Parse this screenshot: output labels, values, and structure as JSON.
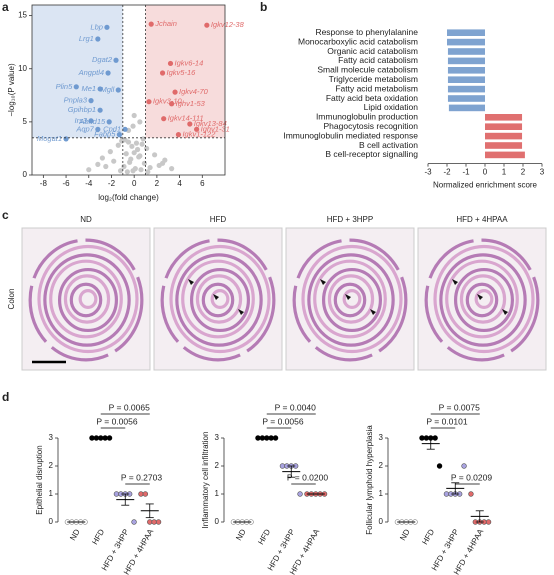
{
  "panel_letters": [
    "a",
    "b",
    "c",
    "d"
  ],
  "histology": {
    "groups": [
      "ND",
      "HFD",
      "HFD + 3HPP",
      "HFD + 4HPAA"
    ],
    "tissue": "Colon"
  },
  "chart_data": [
    {
      "type": "volcano",
      "xlabel": "log₂(fold change)",
      "ylabel": "−log₁₀(P value)",
      "xlim": [
        -9,
        8
      ],
      "ylim": [
        0,
        16
      ],
      "xticks": [
        -8,
        -6,
        -4,
        -2,
        0,
        2,
        4,
        6
      ],
      "yticks": [
        0,
        5,
        10,
        15
      ],
      "thresholds": {
        "x": [
          -1,
          1
        ],
        "y": 3.5
      },
      "shade_colors": [
        "#dbe5f3",
        "#f7dcdc"
      ],
      "background": {
        "color": "#c8c8c8",
        "x": [
          -4,
          -3.2,
          -2.8,
          -2.1,
          -1.8,
          -1.4,
          -1.1,
          -0.9,
          -0.7,
          -0.5,
          -0.3,
          -0.1,
          0.1,
          0.3,
          0.5,
          0.7,
          0.9,
          1.1,
          1.4,
          1.8,
          2.2,
          2.7,
          3.3,
          -0.6,
          -0.2,
          0.2,
          0.6,
          -0.4,
          0.4,
          0,
          -1.2,
          1.2,
          -0.8,
          0.8,
          -2.5,
          2.5,
          -0.5,
          0.5,
          0,
          -0.1
        ],
        "y": [
          0.5,
          1.0,
          1.6,
          2.2,
          1.3,
          2.8,
          3.2,
          0.8,
          2.0,
          3.1,
          1.5,
          0.4,
          0.6,
          2.4,
          1.8,
          2.9,
          1.1,
          2.5,
          0.7,
          1.9,
          0.9,
          1.4,
          0.6,
          0.3,
          2.7,
          3.0,
          0.5,
          1.2,
          1.7,
          2.1,
          0.4,
          0.3,
          3.3,
          3.4,
          0.8,
          1.1,
          4.2,
          5.0,
          5.6,
          4.6
        ]
      },
      "down": {
        "color": "#6f9ad0",
        "labels": [
          "Lbp",
          "Lrg1",
          "Dgat2",
          "Angptl4",
          "Plin5",
          "Me1",
          "Mgll",
          "Pnpla3",
          "Gpihbp1",
          "Irs3",
          "Abhd15",
          "Aqp7",
          "Cpd1",
          "Fabp5",
          "Mogat1"
        ],
        "x": [
          -2.4,
          -3.2,
          -1.6,
          -2.3,
          -5.1,
          -3.0,
          -1.4,
          -3.8,
          -3.0,
          -3.8,
          -2.2,
          -3.2,
          -0.8,
          -1.3,
          -6.0
        ],
        "y": [
          13.9,
          12.8,
          10.8,
          9.6,
          8.3,
          8.1,
          8.0,
          7.0,
          6.1,
          5.1,
          5.0,
          4.3,
          4.3,
          3.8,
          3.4
        ]
      },
      "up": {
        "color": "#e06a6a",
        "labels": [
          "Jchain",
          "Igkv12-38",
          "Igkv6-14",
          "Igkv5-16",
          "Igkv4-70",
          "Igkv3-10",
          "Ighv1-53",
          "Igkv14-111",
          "Igkv13-84",
          "Ighv1-31",
          "Igkv1-122"
        ],
        "x": [
          1.5,
          6.4,
          3.2,
          2.5,
          3.6,
          1.3,
          3.3,
          2.6,
          4.9,
          5.5,
          3.9
        ],
        "y": [
          14.2,
          14.1,
          10.5,
          9.6,
          7.8,
          6.9,
          6.7,
          5.3,
          4.8,
          4.3,
          3.8
        ]
      }
    },
    {
      "type": "hbar",
      "xlabel": "Normalized enrichment score",
      "xlim": [
        -3,
        3
      ],
      "xticks": [
        -3,
        -2,
        -1,
        0,
        1,
        2,
        3
      ],
      "colors": [
        "#7fa3d0",
        "#e07070"
      ],
      "categories": [
        "Response to phenylalanine",
        "Monocarboxylic acid catabolism",
        "Organic acid catabolism",
        "Fatty acid catabolism",
        "Small molecule catabolism",
        "Triglyceride metabolism",
        "Fatty acid metabolism",
        "Fatty acid beta oxidation",
        "Lipid oxidation",
        "Immunoglobulin production",
        "Phagocytosis recognition",
        "Immunoglobulin mediated response",
        "B cell activation",
        "B cell-receptor signalling"
      ],
      "values": [
        -2.0,
        -2.0,
        -1.95,
        -1.95,
        -1.95,
        -1.95,
        -1.95,
        -1.95,
        -1.9,
        1.95,
        1.95,
        1.95,
        1.95,
        2.1
      ]
    },
    {
      "type": "dot",
      "ylabel": "Epithelial disruption",
      "categories": [
        "ND",
        "HFD",
        "HFD + 3HPP",
        "HFD + 4HPAA"
      ],
      "colors": [
        "#ffffff",
        "#000000",
        "#a9a3e0",
        "#e06a6a"
      ],
      "ylim": [
        0,
        3
      ],
      "yticks": [
        0,
        1,
        2,
        3
      ],
      "values": [
        [
          0,
          0,
          0,
          0,
          0
        ],
        [
          3,
          3,
          3,
          3,
          3
        ],
        [
          1,
          1,
          1,
          1,
          0
        ],
        [
          1,
          1,
          0,
          0,
          0
        ]
      ],
      "means": [
        0,
        3,
        0.8,
        0.4
      ],
      "errors": [
        0,
        0,
        0.2,
        0.245
      ],
      "comparisons": [
        {
          "between": [
            1,
            3
          ],
          "label": "P = 0.0065"
        },
        {
          "between": [
            1,
            2
          ],
          "label": "P = 0.0056"
        },
        {
          "between": [
            2,
            3
          ],
          "label": "P = 0.2703"
        }
      ]
    },
    {
      "type": "dot",
      "ylabel": "Inflammatory cell infiltration",
      "categories": [
        "ND",
        "HFD",
        "HFD + 3HPP",
        "HFD + 4HPAA"
      ],
      "colors": [
        "#ffffff",
        "#000000",
        "#a9a3e0",
        "#e06a6a"
      ],
      "ylim": [
        0,
        3
      ],
      "yticks": [
        0,
        1,
        2,
        3
      ],
      "values": [
        [
          0,
          0,
          0,
          0,
          0
        ],
        [
          3,
          3,
          3,
          3,
          3
        ],
        [
          2,
          2,
          2,
          2,
          1
        ],
        [
          1,
          1,
          1,
          1,
          1
        ]
      ],
      "means": [
        0,
        3,
        1.8,
        1
      ],
      "errors": [
        0,
        0,
        0.2,
        0
      ],
      "comparisons": [
        {
          "between": [
            1,
            3
          ],
          "label": "P = 0.0040"
        },
        {
          "between": [
            1,
            2
          ],
          "label": "P = 0.0056"
        },
        {
          "between": [
            2,
            3
          ],
          "label": "P = 0.0200"
        }
      ]
    },
    {
      "type": "dot",
      "ylabel": "Follicular lymphoid hyperplasia",
      "categories": [
        "ND",
        "HFD",
        "HFD + 3HPP",
        "HFD + 4HPAA"
      ],
      "colors": [
        "#ffffff",
        "#000000",
        "#a9a3e0",
        "#e06a6a"
      ],
      "ylim": [
        0,
        3
      ],
      "yticks": [
        0,
        1,
        2,
        3
      ],
      "values": [
        [
          0,
          0,
          0,
          0,
          0
        ],
        [
          3,
          3,
          3,
          3,
          2
        ],
        [
          1,
          1,
          1,
          1,
          2
        ],
        [
          1,
          0,
          0,
          0,
          0
        ]
      ],
      "means": [
        0,
        2.8,
        1.2,
        0.2
      ],
      "errors": [
        0,
        0.2,
        0.2,
        0.2
      ],
      "comparisons": [
        {
          "between": [
            1,
            3
          ],
          "label": "P = 0.0075"
        },
        {
          "between": [
            1,
            2
          ],
          "label": "P = 0.0101"
        },
        {
          "between": [
            2,
            3
          ],
          "label": "P = 0.0209"
        }
      ]
    }
  ]
}
